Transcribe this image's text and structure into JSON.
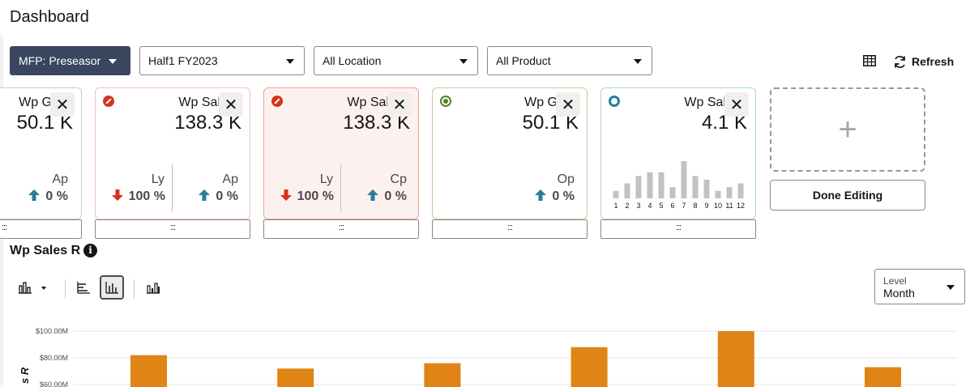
{
  "header": {
    "title": "Dashboard"
  },
  "filters": {
    "view": "MFP: Preseasor",
    "time": "Half1 FY2023",
    "location": "All Location",
    "product": "All Product"
  },
  "toolbar": {
    "refresh_label": "Refresh"
  },
  "tiles": [
    {
      "title": "Wp G",
      "value": "50.1 K",
      "metrics": [
        {
          "label": "Ap",
          "pct": "0 %",
          "direction": "up"
        }
      ]
    },
    {
      "title": "Wp Sal",
      "value": "138.3 K",
      "status": "red",
      "metrics": [
        {
          "label": "Ly",
          "pct": "100 %",
          "direction": "down"
        },
        {
          "label": "Ap",
          "pct": "0 %",
          "direction": "up"
        }
      ]
    },
    {
      "title": "Wp Sal",
      "value": "138.3 K",
      "status": "red",
      "metrics": [
        {
          "label": "Ly",
          "pct": "100 %",
          "direction": "down"
        },
        {
          "label": "Cp",
          "pct": "0 %",
          "direction": "up"
        }
      ]
    },
    {
      "title": "Wp G",
      "value": "50.1 K",
      "status": "green",
      "metrics": [
        {
          "label": "Op",
          "pct": "0 %",
          "direction": "up"
        }
      ]
    },
    {
      "title": "Wp Sal",
      "value": "4.1 K",
      "status": "teal",
      "sparkline": {
        "labels": [
          "1",
          "2",
          "3",
          "4",
          "5",
          "6",
          "7",
          "8",
          "9",
          "10",
          "11",
          "12"
        ],
        "values": [
          2,
          4,
          6,
          7,
          7,
          3,
          10,
          6,
          5,
          2,
          3,
          4
        ]
      }
    }
  ],
  "handle_glyph": ":::",
  "add_tile_glyph": "+",
  "done_editing_label": "Done Editing",
  "section": {
    "title": "Wp Sales R",
    "info_glyph": "i"
  },
  "level": {
    "label": "Level",
    "value": "Month"
  },
  "chart_data": {
    "type": "bar",
    "y_tick_labels": [
      "$100.00M",
      "$80.00M",
      "$60.00M"
    ],
    "y_ticks": [
      100,
      80,
      60
    ],
    "ylabel": "s R",
    "values": [
      82,
      72,
      76,
      88,
      100,
      73
    ],
    "color": "#e08416"
  },
  "colors": {
    "accent_dark": "#3a4560",
    "arrow_up": "#267e99",
    "arrow_down": "#d3331e",
    "bar": "#e08416"
  }
}
